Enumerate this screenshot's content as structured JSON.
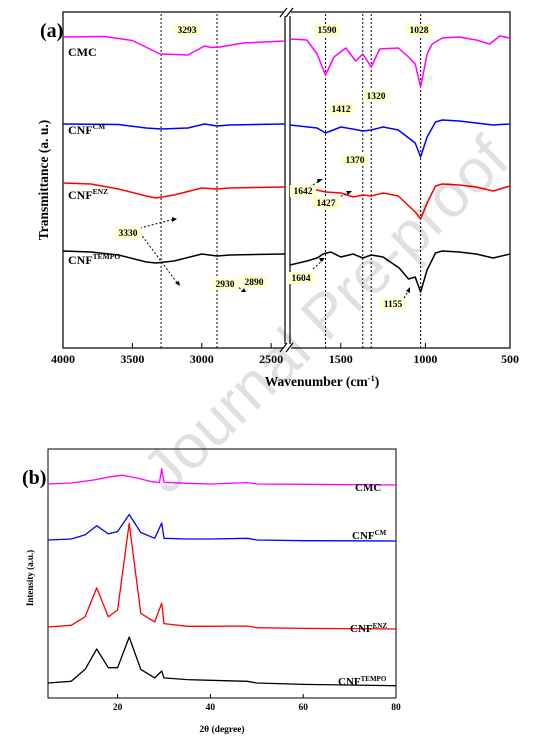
{
  "watermark": "Journal Pre-proof",
  "chart_data": [
    {
      "panel": "(a)",
      "type": "line",
      "xlabel": "Wavenumber (cm",
      "xlabel_sup": "-1",
      "xlabel_close": ")",
      "ylabel": "Transmittance (a. u.)",
      "x_axis_broken": true,
      "xlim_left": [
        4000,
        2400
      ],
      "xlim_right": [
        1800,
        500
      ],
      "x_ticks": [
        "4000",
        "3500",
        "3000",
        "2500",
        "1500",
        "1000",
        "500"
      ],
      "reference_lines": [
        3293,
        2890,
        1590,
        1370,
        1320,
        1028
      ],
      "series": [
        {
          "name": "CMC",
          "sup": "",
          "color": "#ff00ff",
          "points": [
            [
              4000,
              0.5
            ],
            [
              3700,
              0.55
            ],
            [
              3500,
              0.15
            ],
            [
              3300,
              -1.2
            ],
            [
              3100,
              -1.3
            ],
            [
              2980,
              -0.4
            ],
            [
              2930,
              -0.55
            ],
            [
              2870,
              -0.5
            ],
            [
              2700,
              -0.1
            ],
            [
              2400,
              0.1
            ],
            [
              1800,
              0.3
            ],
            [
              1700,
              0.2
            ],
            [
              1640,
              -1.2
            ],
            [
              1590,
              -3.3
            ],
            [
              1540,
              -1.5
            ],
            [
              1470,
              -0.6
            ],
            [
              1412,
              -1.9
            ],
            [
              1370,
              -1.2
            ],
            [
              1320,
              -2.5
            ],
            [
              1270,
              -0.7
            ],
            [
              1160,
              -0.6
            ],
            [
              1100,
              -1.5
            ],
            [
              1060,
              -2.2
            ],
            [
              1028,
              -4.5
            ],
            [
              990,
              -1.2
            ],
            [
              960,
              -0.2
            ],
            [
              900,
              0.4
            ],
            [
              800,
              0.5
            ],
            [
              700,
              0.2
            ],
            [
              620,
              -0.2
            ],
            [
              560,
              0.6
            ],
            [
              500,
              0.4
            ]
          ]
        },
        {
          "name": "CNF",
          "sup": "CM",
          "color": "#0000ff",
          "points": [
            [
              4000,
              0.1
            ],
            [
              3600,
              0.05
            ],
            [
              3400,
              -0.3
            ],
            [
              3293,
              -0.4
            ],
            [
              3100,
              -0.3
            ],
            [
              2980,
              0.1
            ],
            [
              2890,
              -0.1
            ],
            [
              2800,
              0.0
            ],
            [
              2400,
              0.1
            ],
            [
              1800,
              0.0
            ],
            [
              1640,
              -0.3
            ],
            [
              1590,
              -0.8
            ],
            [
              1500,
              -0.2
            ],
            [
              1430,
              -0.4
            ],
            [
              1370,
              -0.6
            ],
            [
              1320,
              -0.5
            ],
            [
              1250,
              -0.2
            ],
            [
              1160,
              -0.5
            ],
            [
              1060,
              -1.8
            ],
            [
              1028,
              -3.2
            ],
            [
              990,
              -1.2
            ],
            [
              940,
              0.3
            ],
            [
              900,
              0.5
            ],
            [
              800,
              0.4
            ],
            [
              700,
              0.2
            ],
            [
              600,
              0.0
            ],
            [
              500,
              0.1
            ]
          ]
        },
        {
          "name": "CNF",
          "sup": "ENZ",
          "color": "#ff0000",
          "points": [
            [
              4000,
              0.7
            ],
            [
              3800,
              0.6
            ],
            [
              3600,
              0.1
            ],
            [
              3400,
              -0.6
            ],
            [
              3330,
              -0.8
            ],
            [
              3200,
              -0.5
            ],
            [
              3000,
              0.2
            ],
            [
              2890,
              0.1
            ],
            [
              2800,
              0.2
            ],
            [
              2400,
              0.3
            ],
            [
              1800,
              0.2
            ],
            [
              1642,
              0.0
            ],
            [
              1590,
              -0.2
            ],
            [
              1500,
              -0.3
            ],
            [
              1427,
              -0.7
            ],
            [
              1370,
              -0.5
            ],
            [
              1320,
              -0.6
            ],
            [
              1250,
              -0.3
            ],
            [
              1160,
              -0.6
            ],
            [
              1060,
              -2.2
            ],
            [
              1028,
              -2.9
            ],
            [
              990,
              -1.3
            ],
            [
              940,
              0.4
            ],
            [
              900,
              0.6
            ],
            [
              800,
              0.5
            ],
            [
              700,
              0.3
            ],
            [
              600,
              -0.1
            ],
            [
              500,
              0.4
            ]
          ]
        },
        {
          "name": "CNF",
          "sup": "TEMPO",
          "color": "#000000",
          "points": [
            [
              4000,
              0.6
            ],
            [
              3800,
              0.5
            ],
            [
              3600,
              0.2
            ],
            [
              3400,
              -0.5
            ],
            [
              3330,
              -0.6
            ],
            [
              3200,
              -0.4
            ],
            [
              3000,
              0.3
            ],
            [
              2890,
              0.1
            ],
            [
              2800,
              0.2
            ],
            [
              2400,
              0.3
            ],
            [
              1800,
              -0.8
            ],
            [
              1700,
              -0.4
            ],
            [
              1640,
              -0.1
            ],
            [
              1604,
              0.3
            ],
            [
              1560,
              0.5
            ],
            [
              1500,
              0.0
            ],
            [
              1427,
              0.3
            ],
            [
              1370,
              -0.1
            ],
            [
              1320,
              0.2
            ],
            [
              1250,
              0.0
            ],
            [
              1155,
              -1.1
            ],
            [
              1100,
              -2.2
            ],
            [
              1060,
              -2.0
            ],
            [
              1028,
              -3.5
            ],
            [
              990,
              -1.3
            ],
            [
              940,
              0.4
            ],
            [
              900,
              0.6
            ],
            [
              800,
              0.5
            ],
            [
              700,
              0.3
            ],
            [
              600,
              -0.1
            ],
            [
              500,
              0.3
            ]
          ]
        }
      ],
      "annotations": [
        "3293",
        "2930",
        "2890",
        "3330",
        "1590",
        "1412",
        "1320",
        "1028",
        "1370",
        "1642",
        "1427",
        "1604",
        "1155"
      ]
    },
    {
      "panel": "(b)",
      "type": "line",
      "xlabel": "2θ (degree)",
      "ylabel": "Intensity (a.u.)",
      "xlim": [
        5,
        80
      ],
      "x_ticks": [
        "20",
        "40",
        "60",
        "80"
      ],
      "series": [
        {
          "name": "CMC",
          "sup": "",
          "color": "#ff00ff",
          "points": [
            [
              5,
              0.0
            ],
            [
              10,
              0.03
            ],
            [
              15,
              0.12
            ],
            [
              18,
              0.2
            ],
            [
              21,
              0.26
            ],
            [
              24,
              0.18
            ],
            [
              27,
              0.08
            ],
            [
              29,
              0.04
            ],
            [
              29.5,
              0.45
            ],
            [
              30,
              0.05
            ],
            [
              35,
              0.02
            ],
            [
              40,
              0.0
            ],
            [
              48,
              0.04
            ],
            [
              50,
              0.0
            ],
            [
              60,
              -0.01
            ],
            [
              80,
              -0.03
            ]
          ]
        },
        {
          "name": "CNF",
          "sup": "CM",
          "color": "#0000ff",
          "points": [
            [
              5,
              0.0
            ],
            [
              10,
              0.03
            ],
            [
              13,
              0.15
            ],
            [
              15.5,
              0.42
            ],
            [
              18,
              0.18
            ],
            [
              20,
              0.25
            ],
            [
              22.5,
              0.75
            ],
            [
              25,
              0.22
            ],
            [
              28,
              0.05
            ],
            [
              29.5,
              0.5
            ],
            [
              30,
              0.05
            ],
            [
              35,
              0.03
            ],
            [
              40,
              0.03
            ],
            [
              48,
              0.05
            ],
            [
              50,
              0.0
            ],
            [
              60,
              -0.02
            ],
            [
              80,
              -0.03
            ]
          ]
        },
        {
          "name": "CNF",
          "sup": "ENZ",
          "color": "#ff0000",
          "points": [
            [
              5,
              0.0
            ],
            [
              10,
              0.05
            ],
            [
              13,
              0.3
            ],
            [
              15.5,
              1.15
            ],
            [
              18,
              0.3
            ],
            [
              20,
              0.5
            ],
            [
              22.5,
              3.05
            ],
            [
              25,
              0.4
            ],
            [
              28,
              0.15
            ],
            [
              29.5,
              0.7
            ],
            [
              30,
              0.1
            ],
            [
              35,
              0.02
            ],
            [
              40,
              0.02
            ],
            [
              48,
              0.03
            ],
            [
              50,
              -0.02
            ],
            [
              60,
              -0.04
            ],
            [
              80,
              -0.06
            ]
          ]
        },
        {
          "name": "CNF",
          "sup": "TEMPO",
          "color": "#000000",
          "points": [
            [
              5,
              0.0
            ],
            [
              10,
              0.05
            ],
            [
              13,
              0.4
            ],
            [
              15.5,
              1.0
            ],
            [
              18,
              0.45
            ],
            [
              20,
              0.45
            ],
            [
              22.5,
              1.35
            ],
            [
              25,
              0.4
            ],
            [
              28,
              0.15
            ],
            [
              29.5,
              0.35
            ],
            [
              30,
              0.15
            ],
            [
              35,
              0.1
            ],
            [
              40,
              0.08
            ],
            [
              48,
              0.05
            ],
            [
              50,
              0.0
            ],
            [
              60,
              -0.04
            ],
            [
              80,
              -0.08
            ]
          ]
        }
      ]
    }
  ]
}
